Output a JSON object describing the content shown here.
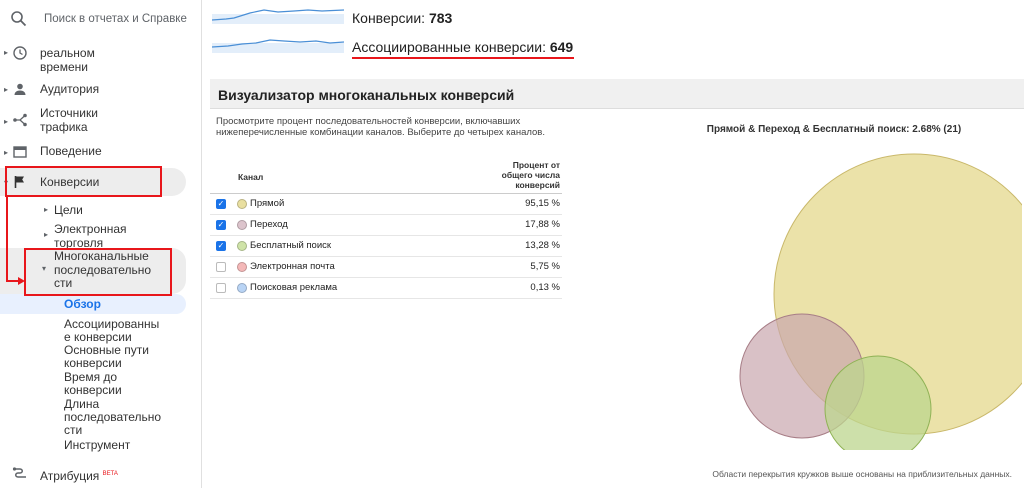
{
  "sidebar": {
    "search_placeholder": "Поиск в отчетах и Справке",
    "realtime_label_1": "реальном",
    "realtime_label_2": "времени",
    "audience_label": "Аудитория",
    "sources_label_1": "Источники",
    "sources_label_2": "трафика",
    "behavior_label": "Поведение",
    "conversions_label": "Конверсии",
    "goals_label": "Цели",
    "ecommerce_label_1": "Электронная",
    "ecommerce_label_2": "торговля",
    "mcf_label_1": "Многоканальные",
    "mcf_label_2": "последовательно",
    "mcf_label_3": "сти",
    "overview_label": "Обзор",
    "assisted_1": "Ассоциированны",
    "assisted_2": "е конверсии",
    "top_paths_1": "Основные пути",
    "top_paths_2": "конверсии",
    "time_lag_1": "Время до",
    "time_lag_2": "конверсии",
    "path_length_1": "Длина",
    "path_length_2": "последовательно",
    "path_length_3": "сти",
    "tool_label": "Инструмент",
    "attribution_label": "Атрибуция",
    "beta_label": "BETA"
  },
  "metrics": {
    "conversions_label": "Конверсии:",
    "conversions_value": "783",
    "assisted_label": "Ассоциированные конверсии:",
    "assisted_value": "649"
  },
  "panel": {
    "title": "Визуализатор многоканальных конверсий",
    "description": "Просмотрите процент последовательностей конверсии, включавших нижеперечисленные комбинации каналов. Выберите до четырех каналов.",
    "col_channel": "Канал",
    "col_percent_1": "Процент от",
    "col_percent_2": "общего числа",
    "col_percent_3": "конверсий",
    "rows": [
      {
        "name": "Прямой",
        "percent": "95,15 %",
        "checked": true,
        "color": "#e9dfa0"
      },
      {
        "name": "Переход",
        "percent": "17,88 %",
        "checked": true,
        "color": "#dcc4cc"
      },
      {
        "name": "Бесплатный поиск",
        "percent": "13,28 %",
        "checked": true,
        "color": "#cfe3a8"
      },
      {
        "name": "Электронная почта",
        "percent": "5,75 %",
        "checked": false,
        "color": "#f4b8b8"
      },
      {
        "name": "Поисковая реклама",
        "percent": "0,13 %",
        "checked": false,
        "color": "#b9d4f5"
      }
    ],
    "venn_title": "Прямой & Переход & Бесплатный поиск: 2.68% (21)",
    "venn_note": "Области перекрытия кружков выше основаны на приблизительных данных."
  },
  "icons": [
    "search-icon",
    "clock-icon",
    "person-icon",
    "sources-icon",
    "behavior-icon",
    "flag-icon",
    "attribution-icon"
  ],
  "colors": {
    "highlight": "#e8161b",
    "checkbox": "#1a73e8",
    "direct": "#d8c67a",
    "referral": "#b88a8f",
    "organic": "#a6c96a"
  }
}
